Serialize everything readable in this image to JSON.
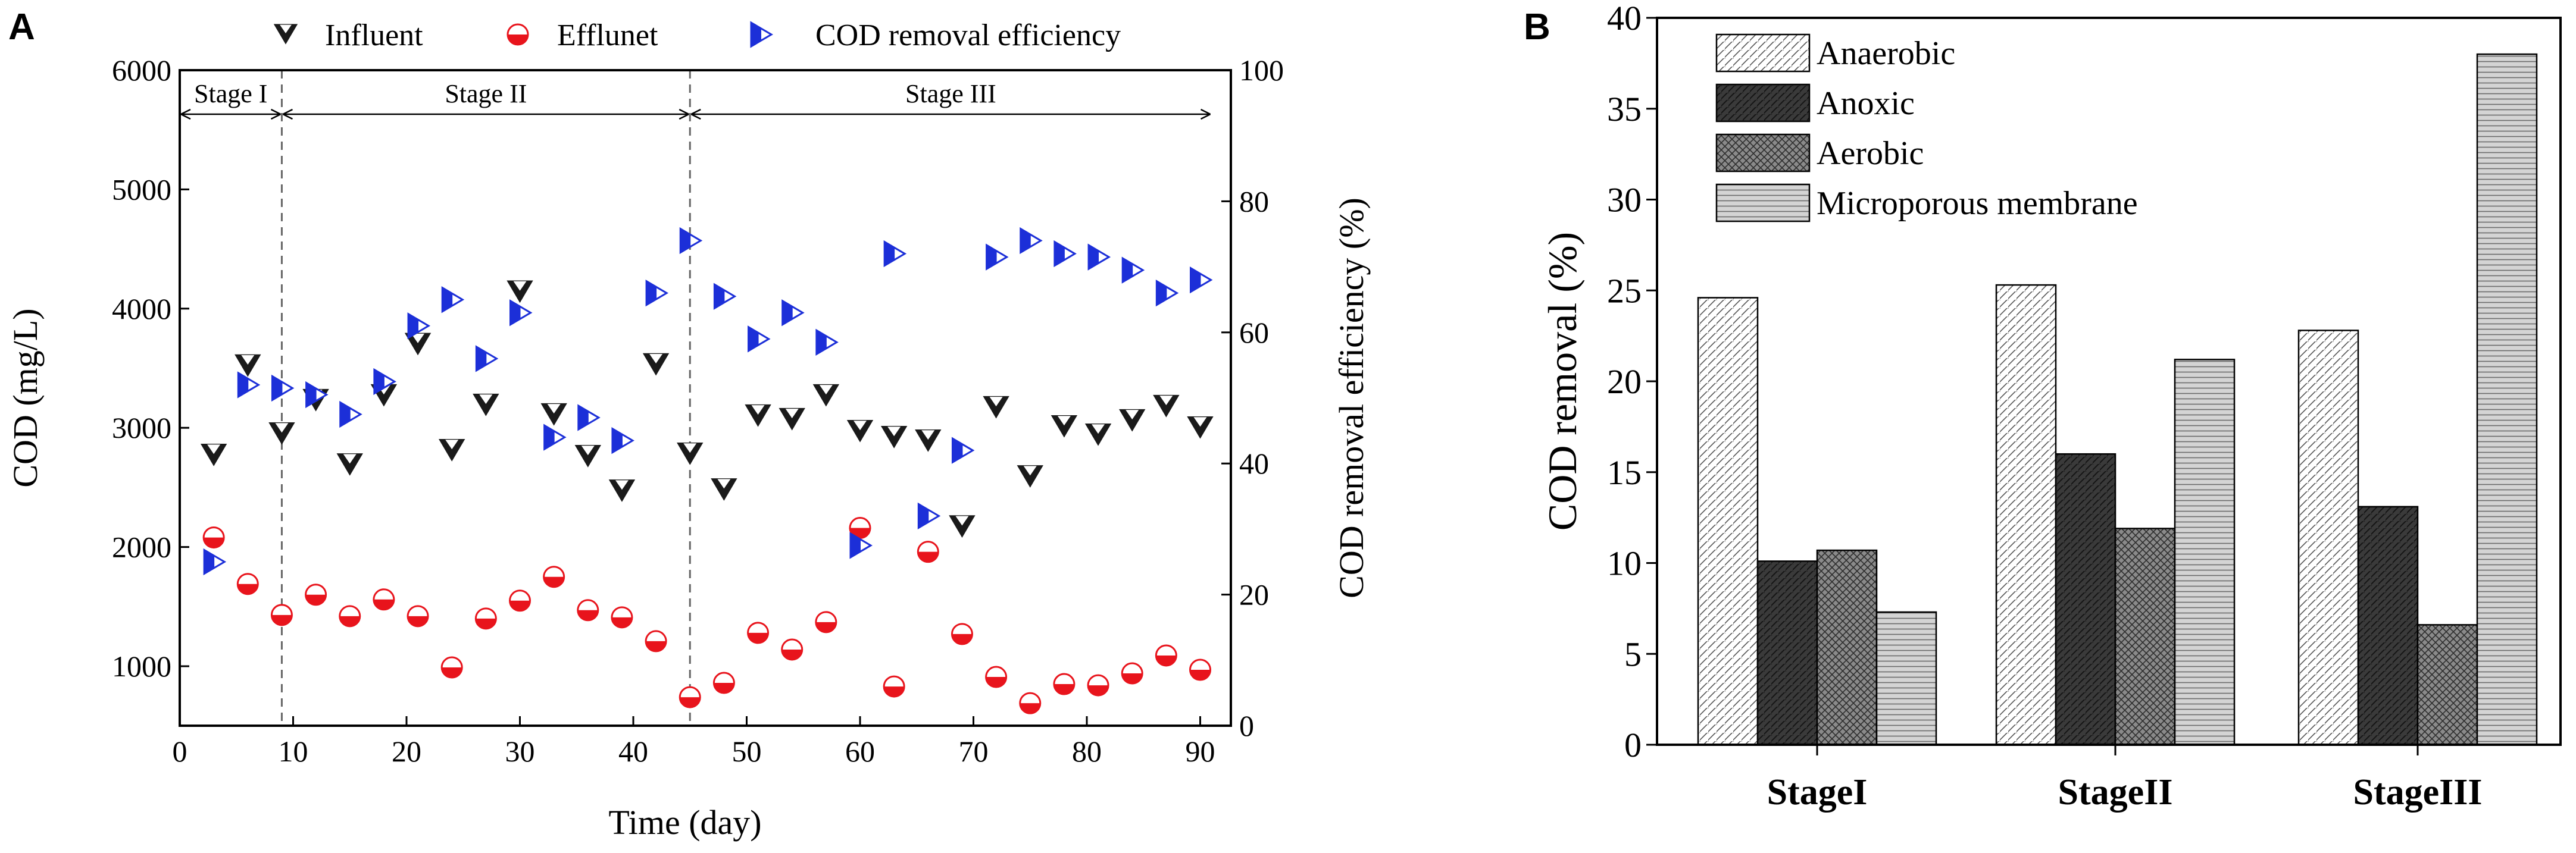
{
  "panels": {
    "a": {
      "letter": "A"
    },
    "b": {
      "letter": "B"
    }
  },
  "colors": {
    "influent": "#1a1a1a",
    "effluent": "#e8141c",
    "removal": "#1c2fd8",
    "anaerobic_fill": "#ffffff",
    "anoxic_fill": "#3a3a3a",
    "aerobic_fill": "#8a8a8a",
    "membrane_fill": "#d4d4d4"
  },
  "chart_data": [
    {
      "type": "scatter",
      "title": "",
      "xlabel": "Time (day)",
      "ylabel_left": "COD (mg/L)",
      "ylabel_right": "COD removal efficiency (%)",
      "xlim": [
        0,
        92
      ],
      "ylim_left": [
        500,
        6000
      ],
      "ylim_right": [
        0,
        100
      ],
      "xticks": [
        0,
        10,
        20,
        30,
        40,
        50,
        60,
        70,
        80,
        90
      ],
      "yticks_left": [
        1000,
        2000,
        3000,
        4000,
        5000,
        6000
      ],
      "yticks_right": [
        0,
        20,
        40,
        60,
        80,
        100
      ],
      "stage_boundaries": [
        9,
        45
      ],
      "stages": [
        {
          "label": "Stage I",
          "start": 0,
          "end": 9
        },
        {
          "label": "Stage II",
          "start": 9,
          "end": 45
        },
        {
          "label": "Stage III",
          "start": 45,
          "end": 91
        }
      ],
      "series": [
        {
          "name": "Influent",
          "axis": "left",
          "marker": "triangle-down",
          "points": [
            [
              3,
              2780
            ],
            [
              6,
              3530
            ],
            [
              9,
              2960
            ],
            [
              12,
              3240
            ],
            [
              15,
              2700
            ],
            [
              18,
              3280
            ],
            [
              21,
              3710
            ],
            [
              24,
              2820
            ],
            [
              27,
              3200
            ],
            [
              30,
              4150
            ],
            [
              33,
              3120
            ],
            [
              36,
              2770
            ],
            [
              39,
              2480
            ],
            [
              42,
              3540
            ],
            [
              45,
              2790
            ],
            [
              48,
              2490
            ],
            [
              51,
              3110
            ],
            [
              54,
              3080
            ],
            [
              57,
              3280
            ],
            [
              60,
              2980
            ],
            [
              63,
              2930
            ],
            [
              66,
              2900
            ],
            [
              69,
              2180
            ],
            [
              72,
              3180
            ],
            [
              75,
              2600
            ],
            [
              78,
              3020
            ],
            [
              81,
              2950
            ],
            [
              84,
              3070
            ],
            [
              87,
              3190
            ],
            [
              90,
              3010
            ]
          ]
        },
        {
          "name": "Efflunet",
          "axis": "left",
          "marker": "half-circle",
          "points": [
            [
              3,
              2080
            ],
            [
              6,
              1690
            ],
            [
              9,
              1430
            ],
            [
              12,
              1600
            ],
            [
              15,
              1420
            ],
            [
              18,
              1560
            ],
            [
              21,
              1420
            ],
            [
              24,
              990
            ],
            [
              27,
              1400
            ],
            [
              30,
              1550
            ],
            [
              33,
              1750
            ],
            [
              36,
              1470
            ],
            [
              39,
              1410
            ],
            [
              42,
              1210
            ],
            [
              45,
              740
            ],
            [
              48,
              860
            ],
            [
              51,
              1280
            ],
            [
              54,
              1140
            ],
            [
              57,
              1370
            ],
            [
              60,
              2160
            ],
            [
              63,
              830
            ],
            [
              66,
              1960
            ],
            [
              69,
              1270
            ],
            [
              72,
              910
            ],
            [
              75,
              690
            ],
            [
              78,
              850
            ],
            [
              81,
              840
            ],
            [
              84,
              940
            ],
            [
              87,
              1090
            ],
            [
              90,
              970
            ]
          ]
        },
        {
          "name": "COD removal efficiency",
          "axis": "right",
          "marker": "triangle-right",
          "points": [
            [
              3,
              25
            ],
            [
              6,
              52
            ],
            [
              9,
              51.5
            ],
            [
              12,
              50.5
            ],
            [
              15,
              47.5
            ],
            [
              18,
              52.5
            ],
            [
              21,
              61
            ],
            [
              24,
              65
            ],
            [
              27,
              56
            ],
            [
              30,
              63
            ],
            [
              33,
              44
            ],
            [
              36,
              47
            ],
            [
              39,
              43.5
            ],
            [
              42,
              66
            ],
            [
              45,
              74
            ],
            [
              48,
              65.5
            ],
            [
              51,
              59
            ],
            [
              54,
              63
            ],
            [
              57,
              58.5
            ],
            [
              60,
              27.5
            ],
            [
              63,
              72
            ],
            [
              66,
              32
            ],
            [
              69,
              42
            ],
            [
              72,
              71.5
            ],
            [
              75,
              74
            ],
            [
              78,
              72
            ],
            [
              81,
              71.5
            ],
            [
              84,
              69.5
            ],
            [
              87,
              66
            ],
            [
              90,
              68
            ]
          ]
        }
      ]
    },
    {
      "type": "bar",
      "title": "",
      "xlabel": "",
      "ylabel": "COD  removal (%)",
      "ylim": [
        0,
        40
      ],
      "yticks": [
        0,
        5,
        10,
        15,
        20,
        25,
        30,
        35,
        40
      ],
      "categories": [
        "StageI",
        "StageII",
        "StageIII"
      ],
      "series": [
        {
          "name": "Anaerobic",
          "values": [
            24.6,
            25.3,
            22.8
          ]
        },
        {
          "name": "Anoxic",
          "values": [
            10.1,
            16.0,
            13.1
          ]
        },
        {
          "name": "Aerobic",
          "values": [
            10.7,
            11.9,
            6.6
          ]
        },
        {
          "name": "Microporous membrane",
          "values": [
            7.3,
            21.2,
            38.0
          ]
        }
      ]
    }
  ]
}
